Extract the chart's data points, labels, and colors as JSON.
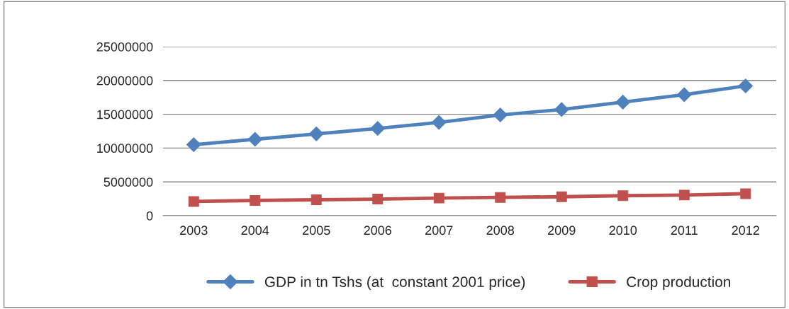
{
  "chart_data": {
    "type": "line",
    "categories": [
      "2003",
      "2004",
      "2005",
      "2006",
      "2007",
      "2008",
      "2009",
      "2010",
      "2011",
      "2012"
    ],
    "series": [
      {
        "name": "GDP in tn Tshs (at  constant 2001 price)",
        "color": "#4f81bd",
        "marker": "diamond",
        "values": [
          10500000,
          11300000,
          12100000,
          12900000,
          13800000,
          14900000,
          15700000,
          16800000,
          17900000,
          19200000
        ]
      },
      {
        "name": "Crop production",
        "color": "#c0504d",
        "marker": "square",
        "values": [
          2100000,
          2250000,
          2350000,
          2450000,
          2600000,
          2700000,
          2800000,
          2950000,
          3050000,
          3250000
        ]
      }
    ],
    "ylim": [
      0,
      25000000
    ],
    "yticks": [
      0,
      5000000,
      10000000,
      15000000,
      20000000,
      25000000
    ],
    "grid": "y",
    "legend": "bottom",
    "line_style": "solid"
  }
}
